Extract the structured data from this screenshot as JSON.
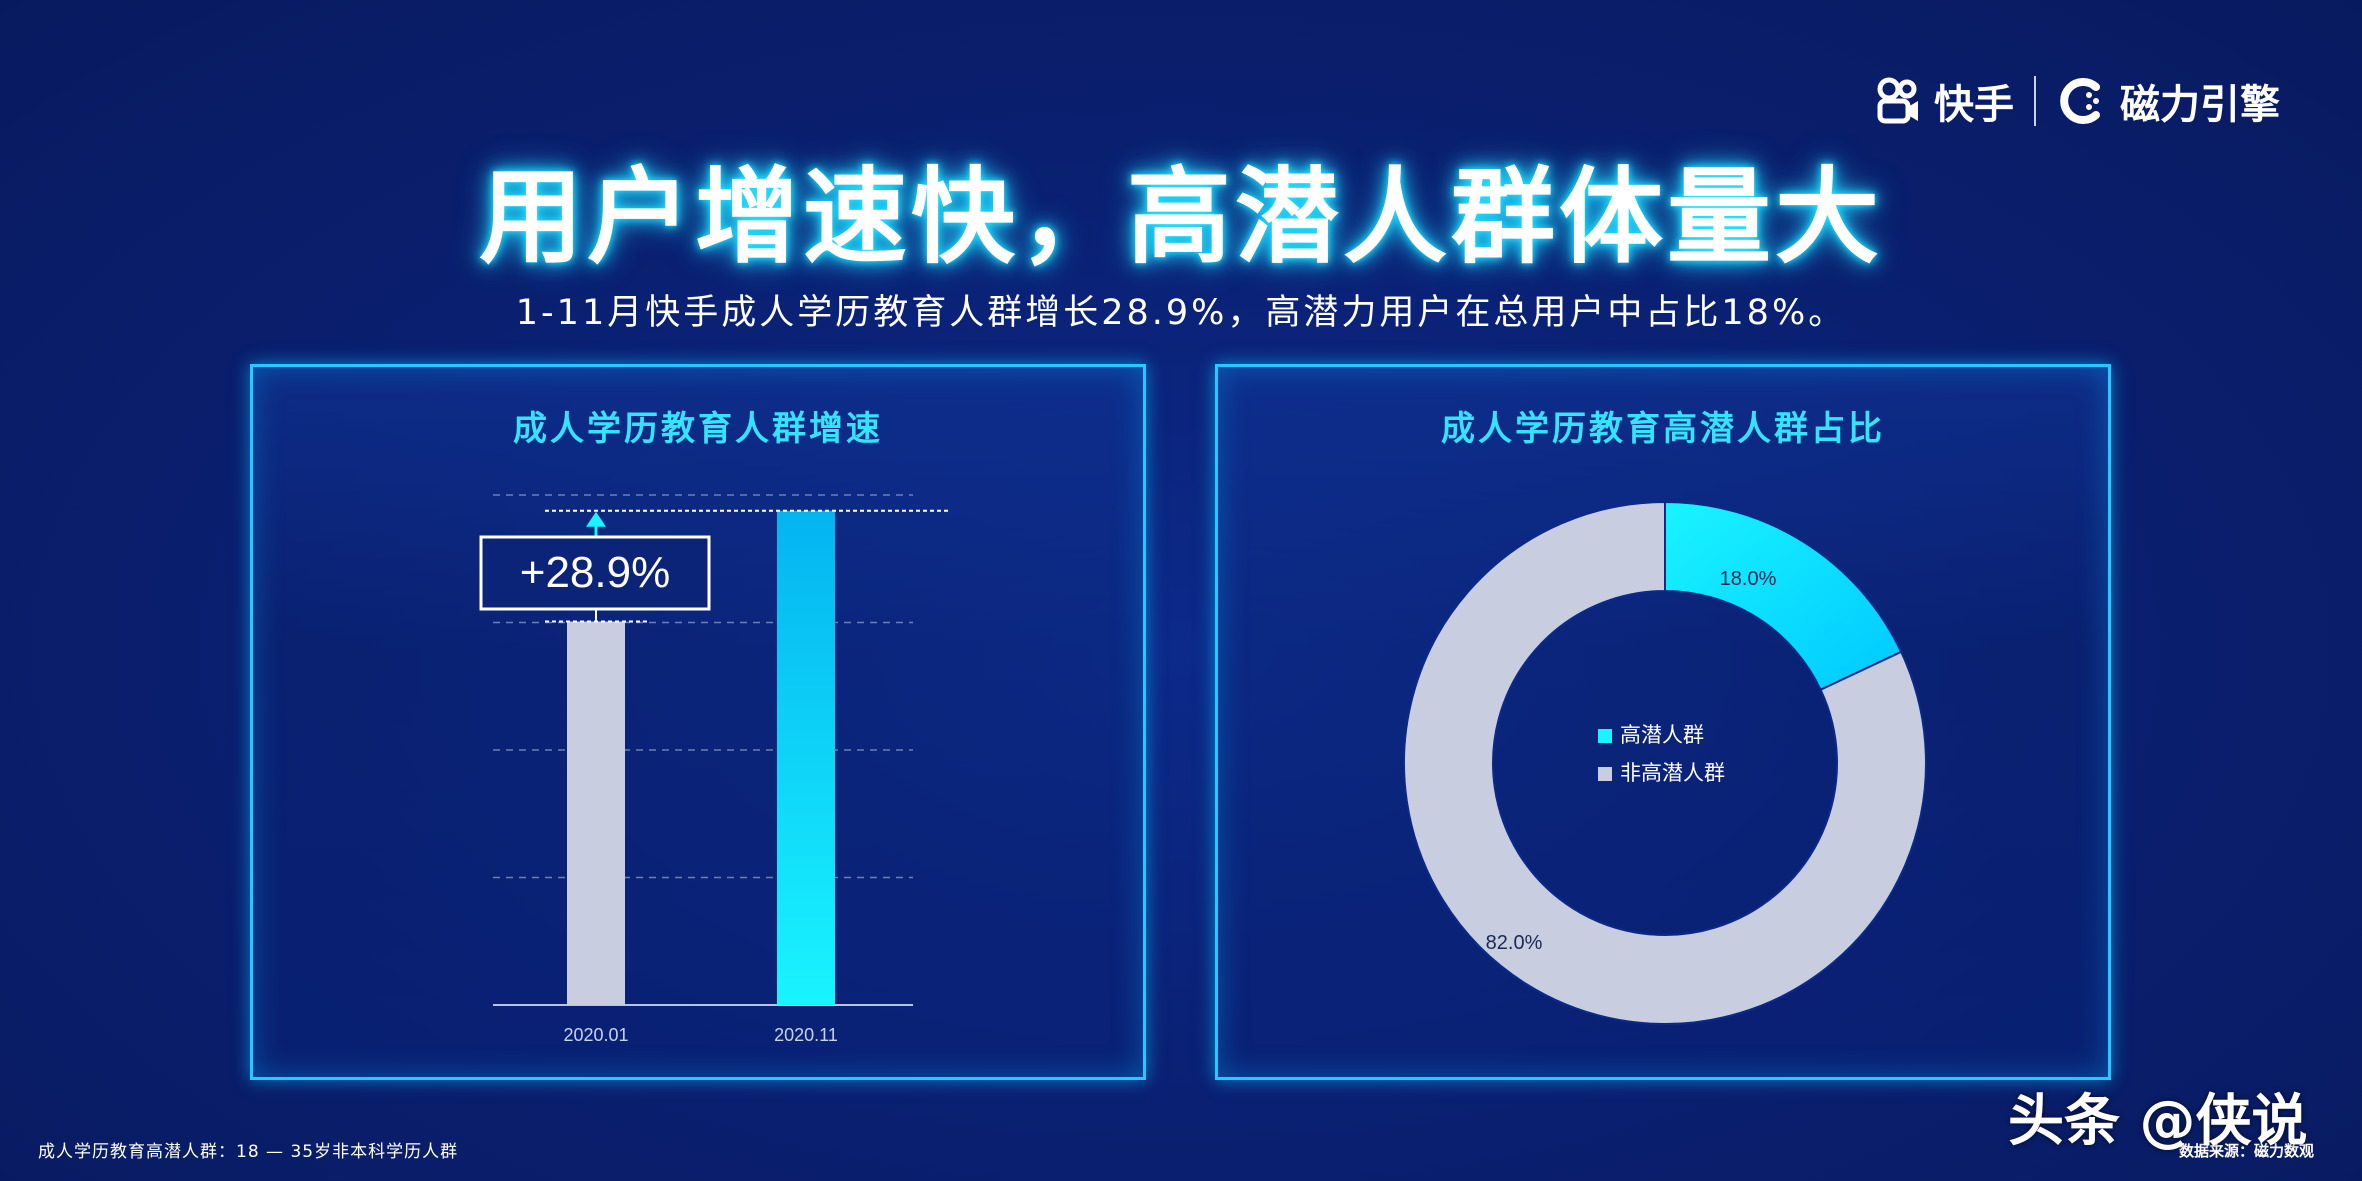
{
  "logos": {
    "kuaishou": "快手",
    "cili": "磁力引擎"
  },
  "title": "用户增速快，高潜人群体量大",
  "subtitle": "1-11月快手成人学历教育人群增长28.9%，高潜力用户在总用户中占比18%。",
  "left_panel": {
    "title": "成人学历教育人群增速"
  },
  "right_panel": {
    "title": "成人学历教育高潜人群占比"
  },
  "footnote": "成人学历教育高潜人群：18 — 35岁非本科学历人群",
  "source": "数据来源：磁力数观",
  "watermark": "头条 @侠说",
  "colors": {
    "background": "#0a1f70",
    "accent": "#19f4ff",
    "grey_bar": "#c9cde0",
    "title_glow": "#26e6ff"
  },
  "chart_data": [
    {
      "type": "bar",
      "title": "成人学历教育人群增速",
      "categories": [
        "2020.01",
        "2020.11"
      ],
      "values": [
        1.0,
        1.289
      ],
      "bar_colors": [
        "#c9cde0",
        "#19f4ff"
      ],
      "annotation": "+28.9%",
      "grid": "dashed",
      "ylim": [
        0,
        1.33
      ]
    },
    {
      "type": "pie",
      "donut": true,
      "title": "成人学历教育高潜人群占比",
      "labels": [
        "高潜人群",
        "非高潜人群"
      ],
      "values": [
        18.0,
        82.0
      ],
      "data_labels": [
        "18.0%",
        "82.0%"
      ],
      "colors": [
        "#19f4ff",
        "#c9cde0"
      ],
      "legend": "center"
    }
  ]
}
